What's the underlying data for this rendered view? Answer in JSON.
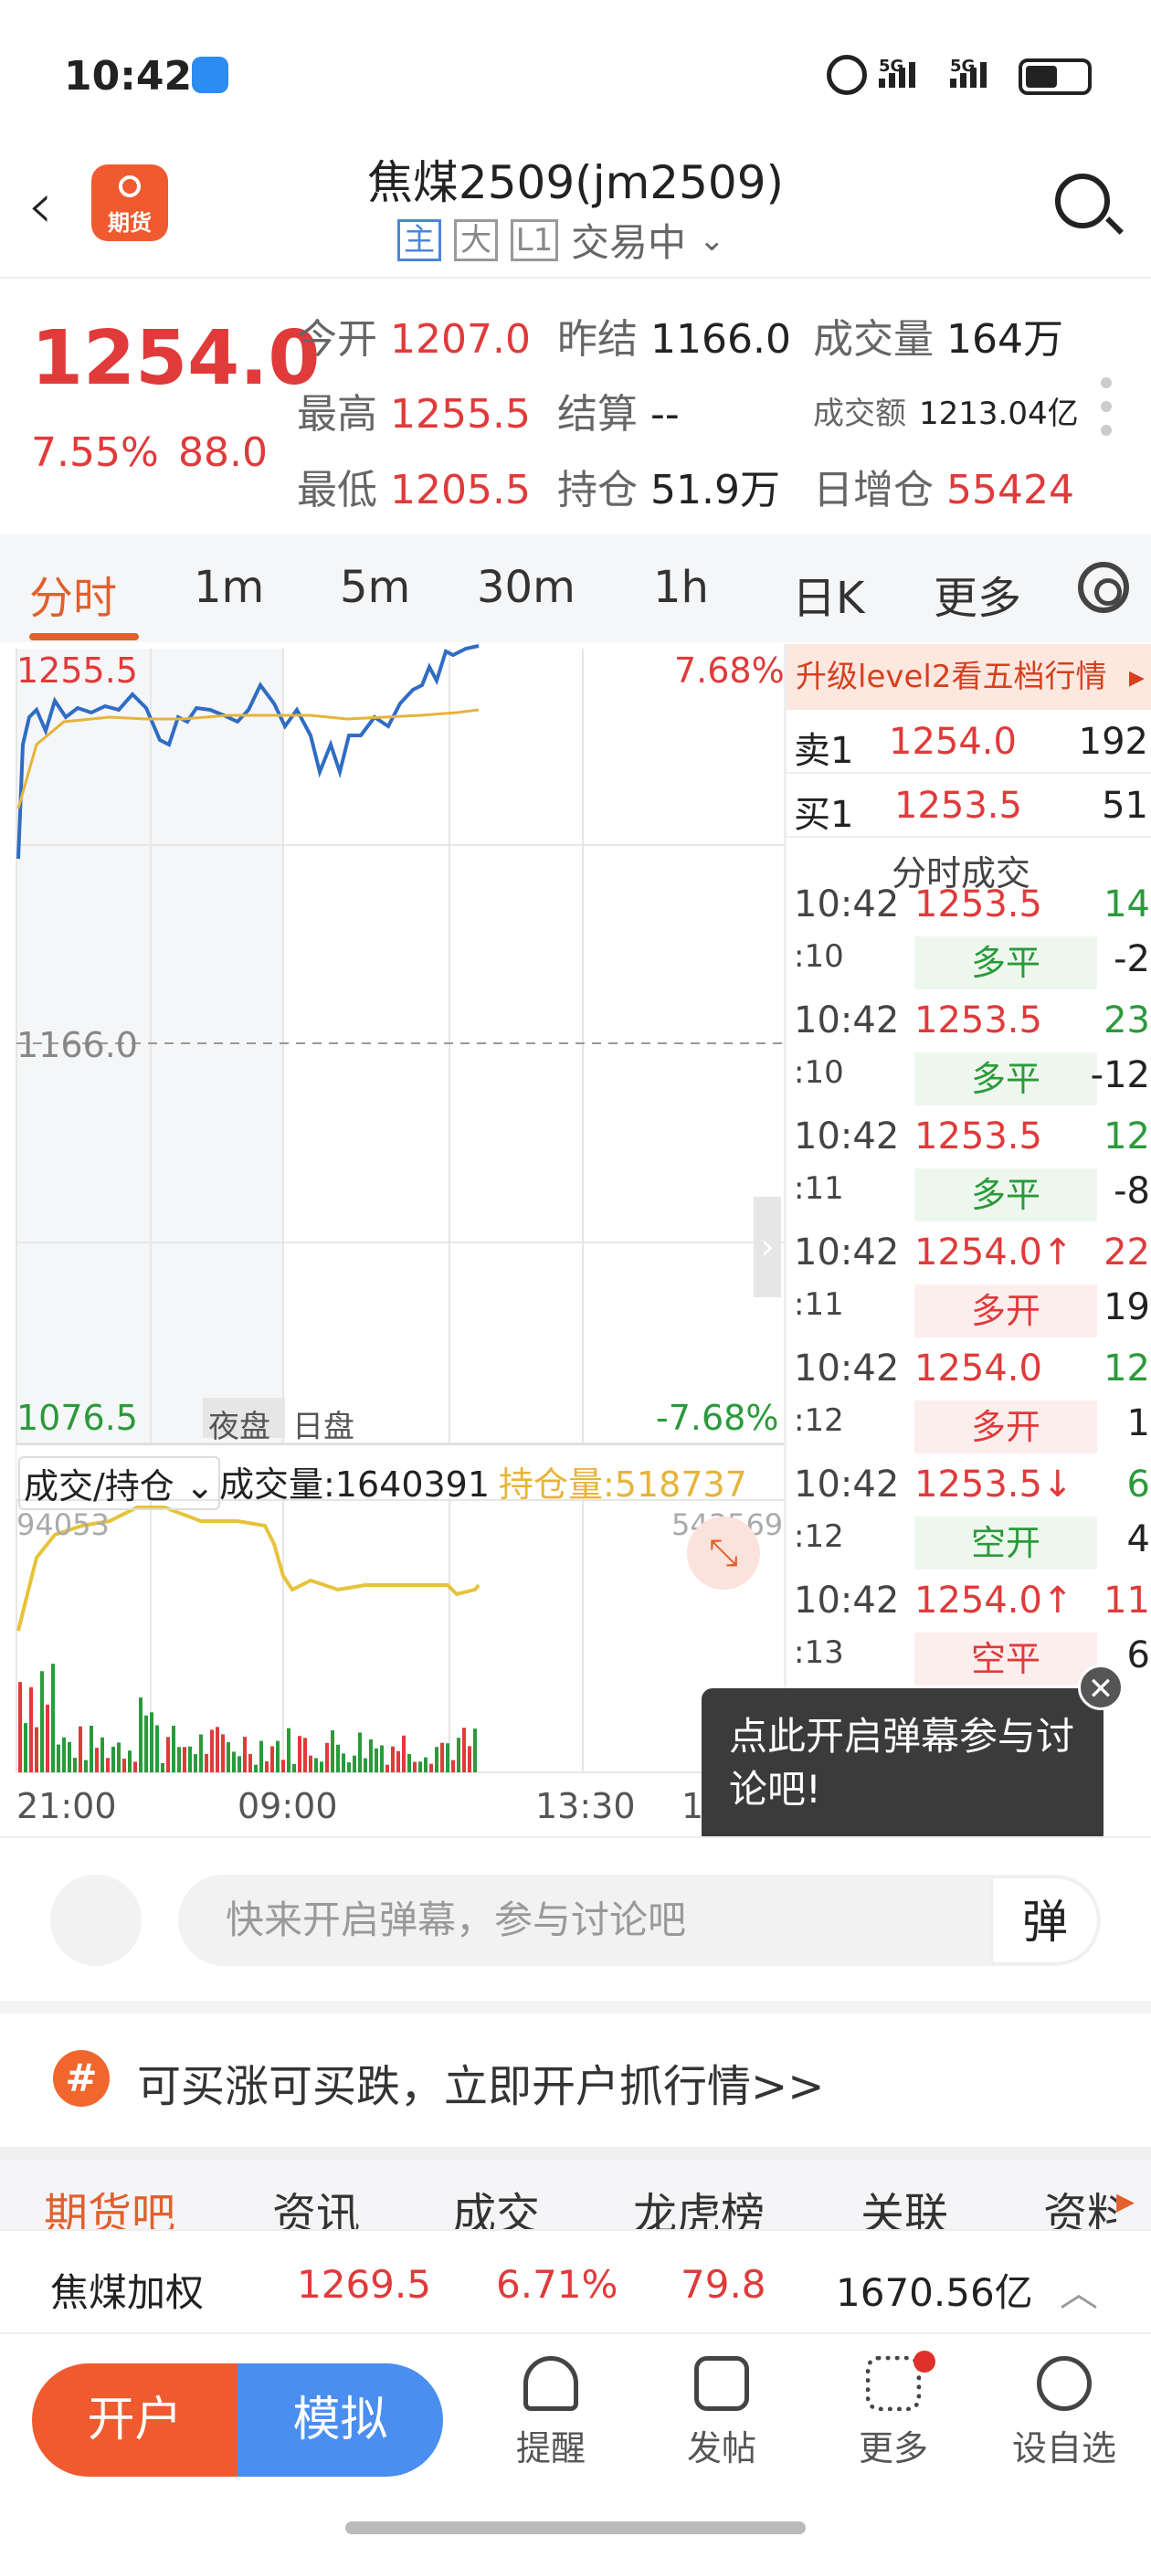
{
  "status_bar": {
    "time": "10:42",
    "net1": "5G",
    "net2": "5G"
  },
  "header": {
    "logo_text": "期货",
    "title": "焦煤2509(jm2509)",
    "tags": [
      "主",
      "大",
      "L1"
    ],
    "trading_status": "交易中"
  },
  "quote": {
    "last_price": "1254.0",
    "change_pct": "7.55%",
    "change": "88.0",
    "open_label": "今开",
    "open": "1207.0",
    "prev_label": "昨结",
    "prev": "1166.0",
    "volume_label": "成交量",
    "volume": "164万",
    "high_label": "最高",
    "high": "1255.5",
    "settle_label": "结算",
    "settle": "--",
    "turnover_label": "成交额",
    "turnover": "1213.04亿",
    "low_label": "最低",
    "low": "1205.5",
    "oi_label": "持仓",
    "oi": "51.9万",
    "oi_chg_label": "日增仓",
    "oi_chg": "55424"
  },
  "tabs": [
    "分时",
    "1m",
    "5m",
    "30m",
    "1h",
    "日K",
    "更多"
  ],
  "chart": {
    "top_price": "1255.5",
    "top_pct": "7.68%",
    "mid_price": "1166.0",
    "bottom_price": "1076.5",
    "bottom_pct": "-7.68%",
    "session_night": "夜盘",
    "session_day": "日盘",
    "vol_selector": "成交/持仓",
    "vol_label": "成交量:1640391",
    "oi_label": "持仓量:518737",
    "vol_max": "94053",
    "oi_max": "543569",
    "x_labels": [
      "21:00",
      "09:00",
      "13:30",
      "1"
    ]
  },
  "order_book": {
    "upgrade": "升级level2看五档行情",
    "ask_label": "卖1",
    "ask_price": "1254.0",
    "ask_vol": "192",
    "bid_label": "买1",
    "bid_price": "1253.5",
    "bid_vol": "51",
    "ticks_title": "分时成交",
    "ticks": [
      {
        "time": "10:42",
        "sec": ":10",
        "price": "1253.5",
        "vol": "14",
        "kind": "多平",
        "delta": "-2"
      },
      {
        "time": "10:42",
        "sec": ":10",
        "price": "1253.5",
        "vol": "23",
        "kind": "多平",
        "delta": "-12"
      },
      {
        "time": "10:42",
        "sec": ":11",
        "price": "1253.5",
        "vol": "12",
        "kind": "多平",
        "delta": "-8"
      },
      {
        "time": "10:42",
        "sec": ":11",
        "price": "1254.0↑",
        "vol": "22",
        "kind": "多开",
        "delta": "19"
      },
      {
        "time": "10:42",
        "sec": ":12",
        "price": "1254.0",
        "vol": "12",
        "kind": "多开",
        "delta": "1"
      },
      {
        "time": "10:42",
        "sec": ":12",
        "price": "1253.5↓",
        "vol": "6",
        "kind": "空开",
        "delta": "4"
      },
      {
        "time": "10:42",
        "sec": ":13",
        "price": "1254.0↑",
        "vol": "11",
        "kind": "空平",
        "delta": "6"
      }
    ]
  },
  "tooltip": {
    "text": "点此开启弹幕参与讨论吧!",
    "close": "✕"
  },
  "danmaku": {
    "placeholder": "快来开启弹幕，参与讨论吧",
    "button": "弹"
  },
  "banner": {
    "icon": "#",
    "text": "可买涨可买跌，立即开户抓行情>>"
  },
  "bottom_tabs": [
    "期货吧",
    "资讯",
    "成交",
    "龙虎榜",
    "关联",
    "资料"
  ],
  "weighted": {
    "name": "焦煤加权",
    "price": "1269.5",
    "pct": "6.71%",
    "chg": "79.8",
    "turnover": "1670.56亿"
  },
  "bottom_bar": {
    "open": "开户",
    "sim": "模拟",
    "items": [
      "提醒",
      "发帖",
      "更多",
      "设自选"
    ]
  },
  "colors": {
    "up": "#e03a3a",
    "down": "#2a9a3a",
    "accent": "#ef5a2f",
    "blue": "#4a8ef0"
  }
}
